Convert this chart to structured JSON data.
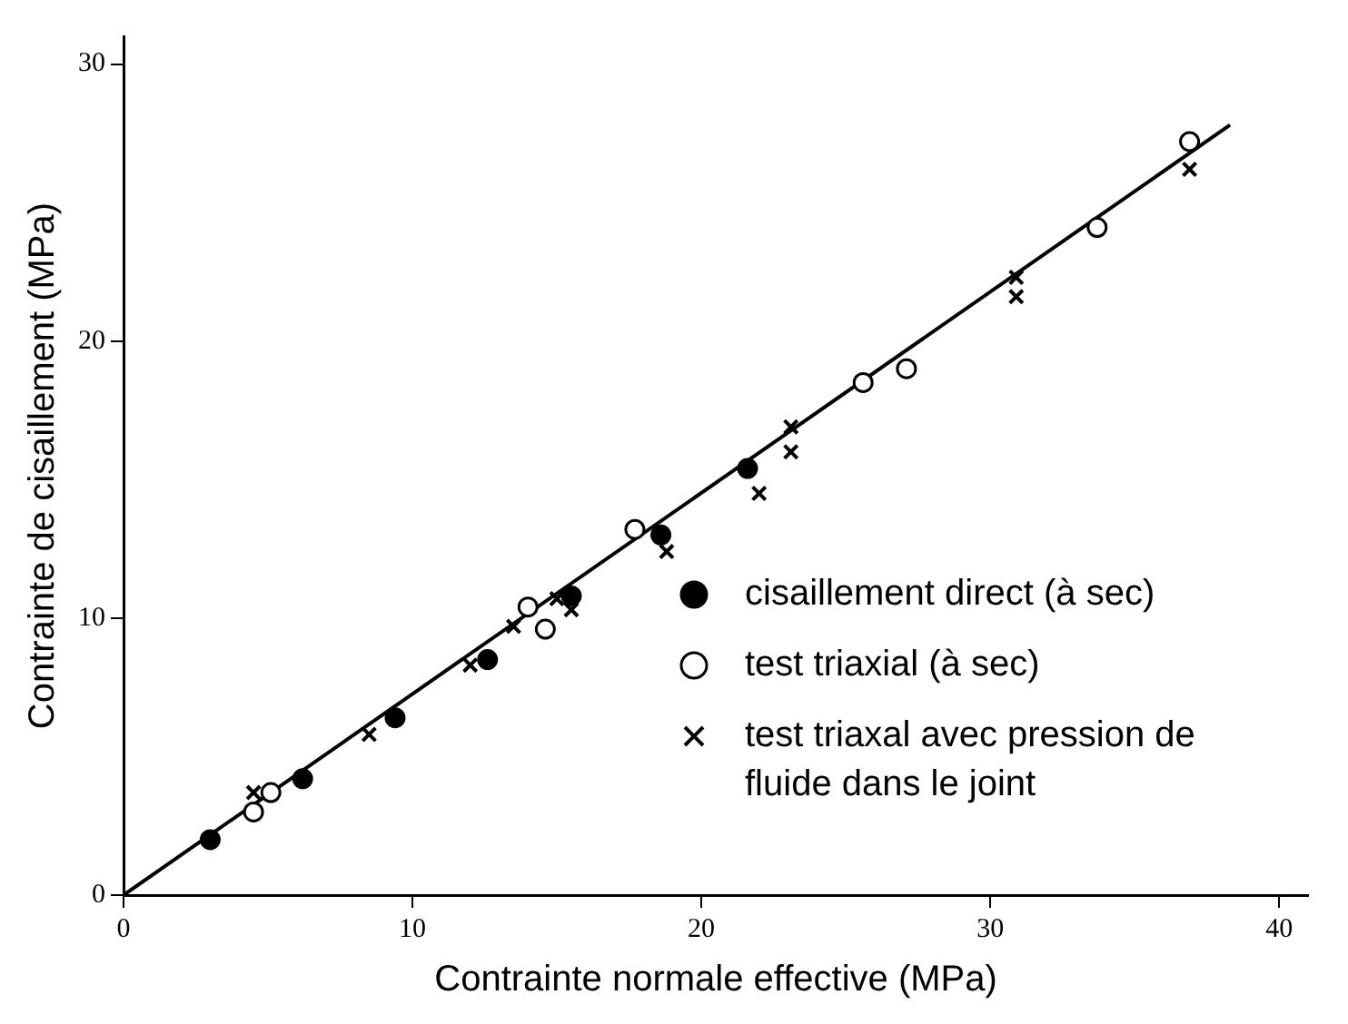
{
  "chart_data": {
    "type": "scatter",
    "xlabel": "Contrainte normale effective (MPa)",
    "ylabel": "Contrainte de cisaillement (MPa)",
    "xlim": [
      0,
      41
    ],
    "xticks": [
      0,
      10,
      20,
      30,
      40
    ],
    "ylim": [
      0,
      31
    ],
    "yticks": [
      0,
      10,
      20,
      30
    ],
    "grid": false,
    "legend": "bottom right",
    "series": [
      {
        "name": "cisaillement direct (à sec)",
        "color": "#000000",
        "marker": "circle",
        "x": [
          3.0,
          6.2,
          9.4,
          12.6,
          15.5,
          18.6,
          21.6
        ],
        "values": [
          2.0,
          4.2,
          6.4,
          8.5,
          10.8,
          13.0,
          15.4
        ]
      },
      {
        "name": "test triaxial (à sec)",
        "color": "#ffffff",
        "marker": "circle",
        "x": [
          4.5,
          5.1,
          14.0,
          14.6,
          17.7,
          25.6,
          27.1,
          33.7,
          36.9
        ],
        "values": [
          3.0,
          3.7,
          10.4,
          9.6,
          13.2,
          18.5,
          19.0,
          24.1,
          27.2
        ]
      },
      {
        "name": "test triaxal avec pression de fluide dans le joint",
        "color": "#000000",
        "marker": "cross",
        "x": [
          4.5,
          8.5,
          12.0,
          13.5,
          15.0,
          15.5,
          18.8,
          22.0,
          23.1,
          23.1,
          30.9,
          30.9,
          36.9
        ],
        "values": [
          3.7,
          5.8,
          8.3,
          9.7,
          10.7,
          10.3,
          12.4,
          14.5,
          16.9,
          16.0,
          22.3,
          21.6,
          26.2
        ]
      },
      {
        "type": "line",
        "color": "#000000",
        "marker": "none",
        "line_style": "solid",
        "x": [
          0,
          38.3
        ],
        "values": [
          0,
          27.8
        ]
      }
    ]
  }
}
